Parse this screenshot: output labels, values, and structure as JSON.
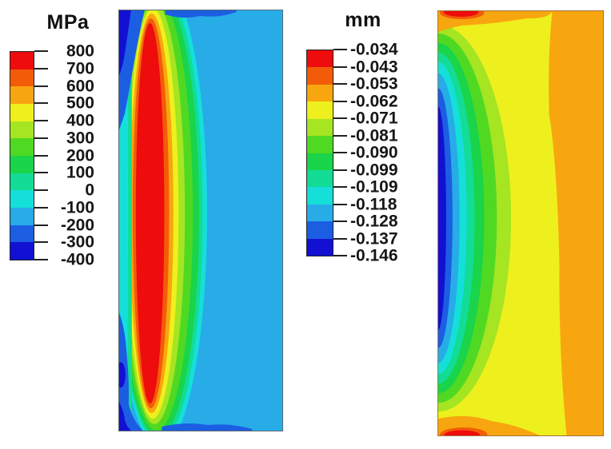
{
  "figure": {
    "kind": "FEA filled-contour results, two panels side by side",
    "background": "#ffffff"
  },
  "chart_data": [
    {
      "type": "heatmap",
      "variant": "filled-contour",
      "legend_title": "MPa",
      "legend_position": "left-of-plot",
      "legend_labels": [
        "800",
        "700",
        "600",
        "500",
        "400",
        "300",
        "200",
        "100",
        "0",
        "-100",
        "-200",
        "-300",
        "-400"
      ],
      "levels": [
        800,
        700,
        600,
        500,
        400,
        300,
        200,
        100,
        0,
        -100,
        -200,
        -300,
        -400
      ],
      "band_colors": [
        "#ee0c0c",
        "#f25c08",
        "#f8a60f",
        "#eef01e",
        "#a5e522",
        "#50d922",
        "#1ad449",
        "#12dc95",
        "#15dfd9",
        "#27ace8",
        "#1c5ee2",
        "#1210d2"
      ],
      "field_summary": {
        "background_band": "-100 to -200 MPa (light blue) fills most of the domain",
        "max_region": "tall narrow red core (700-800 MPa) near the left edge with concentric orange/yellow/green rings, converging at top and bottom edges",
        "left_edge": "cyan-teal vertical strip along the left boundary",
        "min_regions": "dark blue (-300 to -400 MPa) patches at top-left and bottom-left corners; royal-blue bands along top and bottom edges"
      }
    },
    {
      "type": "heatmap",
      "variant": "filled-contour",
      "legend_title": "mm",
      "legend_position": "left-of-plot",
      "legend_labels": [
        "-0.034",
        "-0.043",
        "-0.053",
        "-0.062",
        "-0.071",
        "-0.081",
        "-0.090",
        "-0.099",
        "-0.109",
        "-0.118",
        "-0.128",
        "-0.137",
        "-0.146"
      ],
      "levels": [
        -0.034,
        -0.043,
        -0.053,
        -0.062,
        -0.071,
        -0.081,
        -0.09,
        -0.099,
        -0.109,
        -0.118,
        -0.128,
        -0.137,
        -0.146
      ],
      "band_colors": [
        "#ee0c0c",
        "#f25c08",
        "#f8a60f",
        "#eef01e",
        "#a5e522",
        "#50d922",
        "#1ad449",
        "#12dc95",
        "#15dfd9",
        "#27ace8",
        "#1c5ee2",
        "#1210d2"
      ],
      "field_summary": {
        "background_band": "-0.062 to -0.071 mm (yellow) fills the center",
        "min_region": "dark blue vertical strip (-0.137 to -0.146 mm) at mid-height of the left edge, wrapped by nested blue/cyan/green bands",
        "max_regions": "red spots (-0.034 to -0.043 mm) at top-left and bottom-left edges with orange-red halos",
        "right_edge": "orange band (-0.053 to -0.062 mm) along the full right edge and along top/bottom edges"
      }
    }
  ],
  "plot_borders": {
    "left_plot": "#5f6b73",
    "right_plot": "#a4713d"
  },
  "text_color": "#161616"
}
